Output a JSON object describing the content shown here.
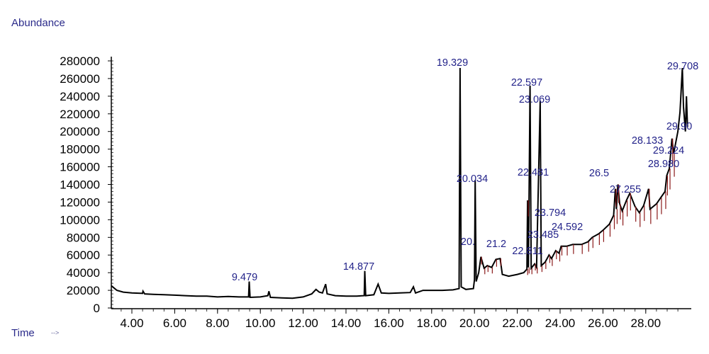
{
  "chart_data": {
    "type": "line",
    "title": "",
    "ylabel": "Abundance",
    "xlabel": "Time",
    "xlabel_arrow": "-->",
    "xlim": [
      3.05,
      30.1
    ],
    "ylim": [
      0,
      280000
    ],
    "x_ticks": [
      "4.00",
      "6.00",
      "8.00",
      "10.00",
      "12.00",
      "14.00",
      "16.00",
      "18.00",
      "20.00",
      "22.00",
      "24.00",
      "26.00",
      "28.00"
    ],
    "y_ticks": [
      "0",
      "20000",
      "40000",
      "60000",
      "80000",
      "100000",
      "120000",
      "140000",
      "160000",
      "180000",
      "200000",
      "220000",
      "240000",
      "260000",
      "280000"
    ],
    "grid": false,
    "line_color": "#000000",
    "label_color": "#23238a",
    "integration_color": "#8b1a1a",
    "series": [
      {
        "points": [
          [
            3.05,
            25000
          ],
          [
            3.3,
            20000
          ],
          [
            3.6,
            18000
          ],
          [
            4.0,
            17000
          ],
          [
            4.5,
            16500
          ],
          [
            4.52,
            19000
          ],
          [
            4.6,
            16000
          ],
          [
            5.0,
            15500
          ],
          [
            5.5,
            15000
          ],
          [
            6.0,
            14500
          ],
          [
            6.5,
            14000
          ],
          [
            7.0,
            13500
          ],
          [
            7.5,
            13500
          ],
          [
            8.0,
            12500
          ],
          [
            8.5,
            13000
          ],
          [
            9.0,
            12500
          ],
          [
            9.45,
            12500
          ],
          [
            9.479,
            30000
          ],
          [
            9.52,
            12000
          ],
          [
            10.0,
            12500
          ],
          [
            10.35,
            14000
          ],
          [
            10.4,
            19000
          ],
          [
            10.47,
            12000
          ],
          [
            11.0,
            11500
          ],
          [
            11.5,
            11000
          ],
          [
            12.0,
            12500
          ],
          [
            12.4,
            16000
          ],
          [
            12.6,
            21000
          ],
          [
            12.75,
            18000
          ],
          [
            12.9,
            17000
          ],
          [
            13.05,
            27000
          ],
          [
            13.12,
            16000
          ],
          [
            13.5,
            14000
          ],
          [
            14.0,
            13500
          ],
          [
            14.5,
            13500
          ],
          [
            14.85,
            14000
          ],
          [
            14.877,
            42000
          ],
          [
            14.92,
            14000
          ],
          [
            15.3,
            15000
          ],
          [
            15.5,
            27000
          ],
          [
            15.65,
            17000
          ],
          [
            16.0,
            16500
          ],
          [
            16.5,
            17000
          ],
          [
            17.0,
            17500
          ],
          [
            17.15,
            24000
          ],
          [
            17.25,
            17000
          ],
          [
            17.6,
            20000
          ],
          [
            18.0,
            20000
          ],
          [
            18.5,
            20000
          ],
          [
            19.0,
            20500
          ],
          [
            19.28,
            22000
          ],
          [
            19.329,
            272000
          ],
          [
            19.38,
            24000
          ],
          [
            19.6,
            21000
          ],
          [
            19.95,
            22000
          ],
          [
            20.0,
            32000
          ],
          [
            20.034,
            145000
          ],
          [
            20.08,
            30000
          ],
          [
            20.2,
            40000
          ],
          [
            20.3,
            58000
          ],
          [
            20.45,
            45000
          ],
          [
            20.6,
            48000
          ],
          [
            20.8,
            46000
          ],
          [
            21.0,
            55000
          ],
          [
            21.2,
            56000
          ],
          [
            21.3,
            38000
          ],
          [
            21.6,
            36000
          ],
          [
            22.0,
            38000
          ],
          [
            22.3,
            40000
          ],
          [
            22.45,
            44000
          ],
          [
            22.481,
            122000
          ],
          [
            22.52,
            46000
          ],
          [
            22.597,
            252000
          ],
          [
            22.65,
            45000
          ],
          [
            22.811,
            50000
          ],
          [
            22.9,
            46000
          ],
          [
            23.069,
            235000
          ],
          [
            23.12,
            48000
          ],
          [
            23.3,
            52000
          ],
          [
            23.485,
            60000
          ],
          [
            23.6,
            56000
          ],
          [
            23.794,
            65000
          ],
          [
            23.95,
            62000
          ],
          [
            24.05,
            70000
          ],
          [
            24.3,
            70000
          ],
          [
            24.592,
            72000
          ],
          [
            25.0,
            72000
          ],
          [
            25.3,
            75000
          ],
          [
            25.5,
            80000
          ],
          [
            25.8,
            84000
          ],
          [
            26.0,
            88000
          ],
          [
            26.3,
            95000
          ],
          [
            26.5,
            105000
          ],
          [
            26.58,
            135000
          ],
          [
            26.63,
            112000
          ],
          [
            26.7,
            140000
          ],
          [
            26.78,
            118000
          ],
          [
            26.9,
            110000
          ],
          [
            27.1,
            122000
          ],
          [
            27.255,
            130000
          ],
          [
            27.5,
            115000
          ],
          [
            27.7,
            108000
          ],
          [
            27.9,
            116000
          ],
          [
            28.133,
            135000
          ],
          [
            28.2,
            112000
          ],
          [
            28.5,
            118000
          ],
          [
            28.7,
            125000
          ],
          [
            28.9,
            132000
          ],
          [
            28.98,
            150000
          ],
          [
            29.1,
            158000
          ],
          [
            29.224,
            192000
          ],
          [
            29.3,
            175000
          ],
          [
            29.5,
            200000
          ],
          [
            29.6,
            222000
          ],
          [
            29.708,
            272000
          ],
          [
            29.76,
            228000
          ],
          [
            29.85,
            200000
          ],
          [
            29.9,
            240000
          ],
          [
            29.95,
            205000
          ]
        ]
      }
    ],
    "peak_labels": [
      "9.479",
      "14.877",
      "19.329",
      "20.034",
      "22.597",
      "23.069",
      "22.481",
      "23.794",
      "24.592",
      "23.485",
      "22.811",
      "27.255",
      "28.133",
      "29.224",
      "28.980",
      "29.90",
      "29.708",
      "26.5",
      "21.2",
      "20."
    ]
  }
}
